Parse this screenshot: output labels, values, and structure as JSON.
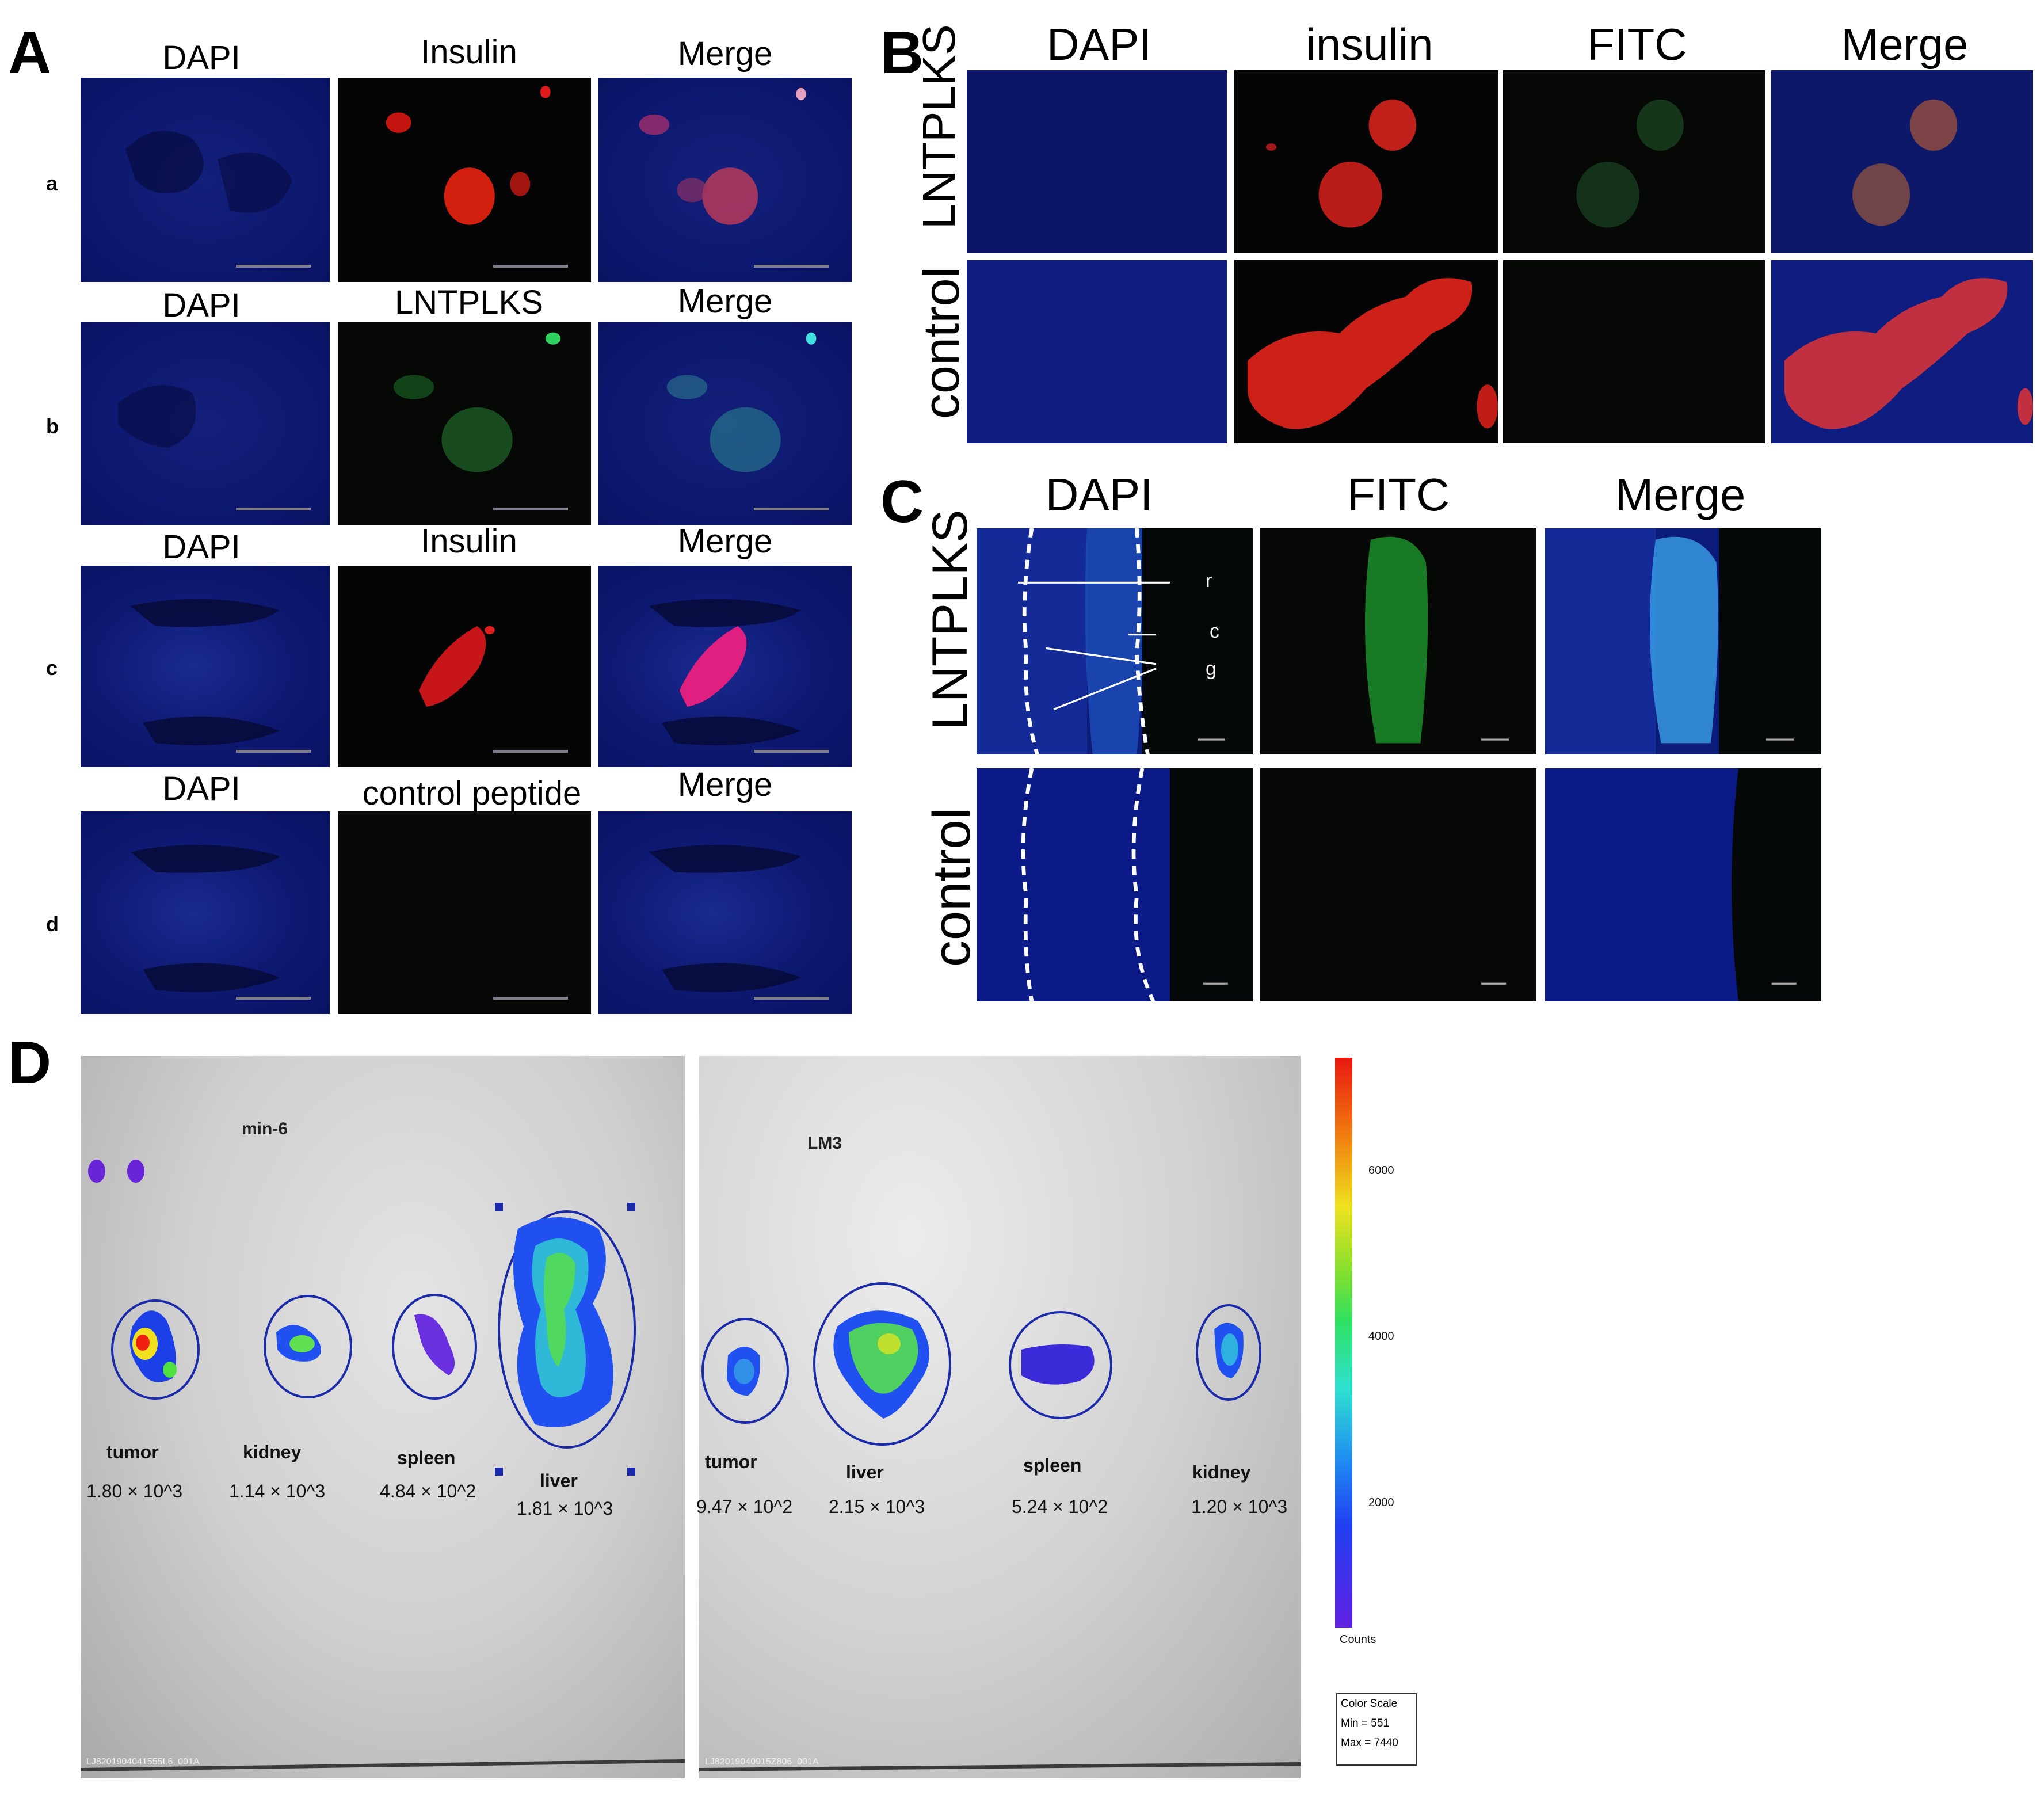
{
  "panels": {
    "A": {
      "letter": "A",
      "rows": [
        {
          "row": "a",
          "labels": [
            "DAPI",
            "Insulin",
            "Merge"
          ]
        },
        {
          "row": "b",
          "labels": [
            "DAPI",
            "LNTPLKS",
            "Merge"
          ]
        },
        {
          "row": "c",
          "labels": [
            "DAPI",
            "Insulin",
            "Merge"
          ]
        },
        {
          "row": "d",
          "labels": [
            "DAPI",
            "control peptide",
            "Merge"
          ]
        }
      ]
    },
    "B": {
      "letter": "B",
      "columns": [
        "DAPI",
        "insulin",
        "FITC",
        "Merge"
      ],
      "rows": [
        "LNTPLKS",
        "control"
      ]
    },
    "C": {
      "letter": "C",
      "columns": [
        "DAPI",
        "FITC",
        "Merge"
      ],
      "rows": [
        "LNTPLKS",
        "control"
      ],
      "annotations": [
        "r",
        "c",
        "g"
      ]
    },
    "D": {
      "letter": "D",
      "left_title": "min-6",
      "right_title": "LM3",
      "left_organs": [
        {
          "name": "tumor",
          "value": "1.80 × 10^3"
        },
        {
          "name": "kidney",
          "value": "1.14 × 10^3"
        },
        {
          "name": "spleen",
          "value": "4.84 × 10^2"
        },
        {
          "name": "liver",
          "value": "1.81 × 10^3"
        }
      ],
      "right_organs": [
        {
          "name": "tumor",
          "value": "9.47 × 10^2"
        },
        {
          "name": "liver",
          "value": "2.15 × 10^3"
        },
        {
          "name": "spleen",
          "value": "5.24 × 10^2"
        },
        {
          "name": "kidney",
          "value": "1.20 × 10^3"
        }
      ],
      "left_file_id": "LJ8201904041555L6_001A",
      "right_file_id": "LJ82019040915Z806_001A",
      "colorbar": {
        "ticks": [
          "6000",
          "4000",
          "2000"
        ],
        "unit": "Counts",
        "legend_title": "Color Scale",
        "legend_min": "Min = 551",
        "legend_max": "Max = 7440"
      }
    }
  }
}
